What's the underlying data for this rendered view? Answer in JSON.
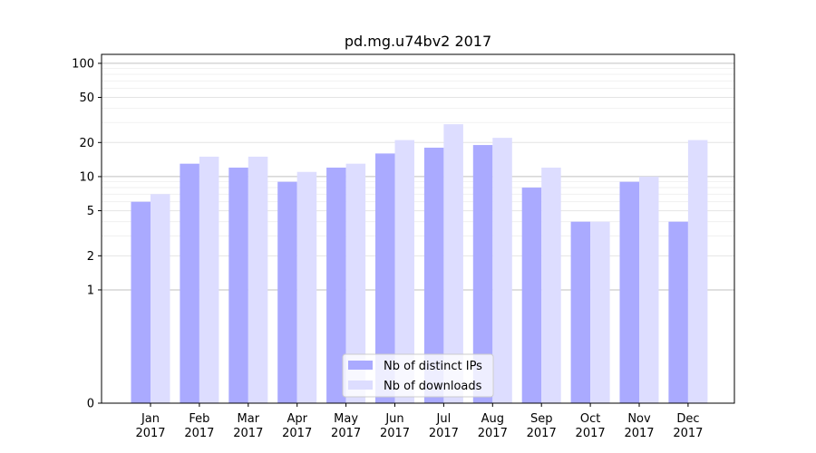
{
  "chart_data": {
    "type": "bar",
    "title": "pd.mg.u74bv2 2017",
    "xlabel": "",
    "ylabel": "",
    "y_scale": "symlog",
    "ylim": [
      0,
      120
    ],
    "y_ticks": [
      0,
      1,
      2,
      5,
      10,
      20,
      50,
      100
    ],
    "categories": [
      [
        "Jan",
        "2017"
      ],
      [
        "Feb",
        "2017"
      ],
      [
        "Mar",
        "2017"
      ],
      [
        "Apr",
        "2017"
      ],
      [
        "May",
        "2017"
      ],
      [
        "Jun",
        "2017"
      ],
      [
        "Jul",
        "2017"
      ],
      [
        "Aug",
        "2017"
      ],
      [
        "Sep",
        "2017"
      ],
      [
        "Oct",
        "2017"
      ],
      [
        "Nov",
        "2017"
      ],
      [
        "Dec",
        "2017"
      ]
    ],
    "series": [
      {
        "name": "Nb of distinct IPs",
        "color": "#aaaaff",
        "values": [
          6,
          13,
          12,
          9,
          12,
          16,
          18,
          19,
          8,
          4,
          9,
          4
        ]
      },
      {
        "name": "Nb of downloads",
        "color": "#ddddff",
        "values": [
          7,
          15,
          15,
          11,
          13,
          21,
          29,
          22,
          12,
          4,
          10,
          21
        ]
      }
    ],
    "grid": true,
    "legend_position": "bottom-center"
  }
}
